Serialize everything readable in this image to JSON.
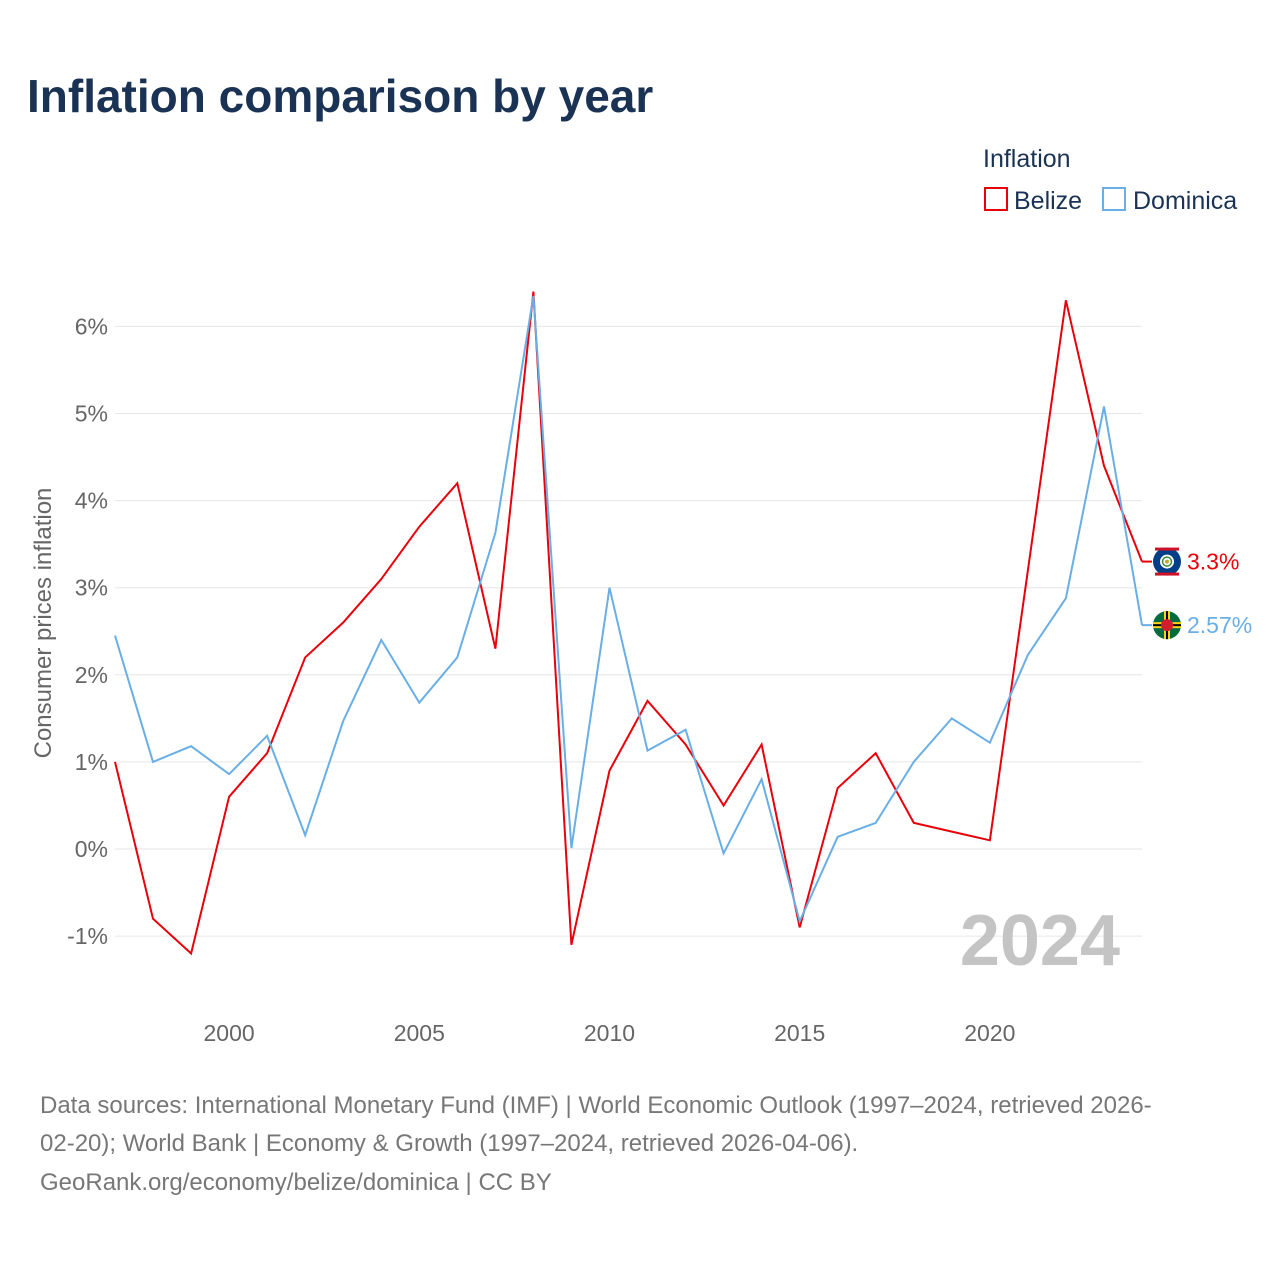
{
  "chart_data": {
    "type": "line",
    "title": "Inflation comparison by year",
    "ylabel": "Consumer prices inflation",
    "xlabel": "",
    "ylim": [
      -1.6,
      6.5
    ],
    "xlim": [
      1997,
      2024
    ],
    "y_ticks": [
      -1,
      0,
      1,
      2,
      3,
      4,
      5,
      6
    ],
    "y_tick_labels": [
      "-1%",
      "0%",
      "1%",
      "2%",
      "3%",
      "4%",
      "5%",
      "6%"
    ],
    "x_ticks": [
      2000,
      2005,
      2010,
      2015,
      2020
    ],
    "x_tick_labels": [
      "2000",
      "2005",
      "2010",
      "2015",
      "2020"
    ],
    "legend_title": "Inflation",
    "legend_position": "top-right",
    "current_year": "2024",
    "x": [
      1997,
      1998,
      1999,
      2000,
      2001,
      2002,
      2003,
      2004,
      2005,
      2006,
      2007,
      2008,
      2009,
      2010,
      2011,
      2012,
      2013,
      2014,
      2015,
      2016,
      2017,
      2018,
      2019,
      2020,
      2021,
      2022,
      2023,
      2024
    ],
    "series": [
      {
        "name": "Belize",
        "color": "#e8000b",
        "end_label": "3.3%",
        "flag_icon": "belize-flag-icon",
        "values": [
          1.0,
          -0.8,
          -1.2,
          0.6,
          1.1,
          2.2,
          2.6,
          3.1,
          3.7,
          4.2,
          2.3,
          6.4,
          -1.1,
          0.9,
          1.7,
          1.2,
          0.5,
          1.2,
          -0.9,
          0.7,
          1.1,
          0.3,
          0.2,
          0.1,
          3.2,
          6.3,
          4.4,
          3.3
        ]
      },
      {
        "name": "Dominica",
        "color": "#6aaee6",
        "end_label": "2.57%",
        "flag_icon": "dominica-flag-icon",
        "values": [
          2.45,
          1.0,
          1.18,
          0.86,
          1.3,
          0.16,
          1.47,
          2.4,
          1.68,
          2.2,
          3.63,
          6.35,
          0.01,
          3.0,
          1.13,
          1.37,
          -0.05,
          0.8,
          -0.83,
          0.14,
          0.3,
          1.0,
          1.5,
          1.22,
          2.23,
          2.88,
          5.08,
          2.57
        ]
      }
    ]
  },
  "footer": {
    "source_line1": "Data sources: International Monetary Fund (IMF) | World Economic Outlook (1997–2024, retrieved 2026-",
    "source_line2": "02-20); World Bank | Economy & Growth (1997–2024, retrieved 2026-04-06).",
    "source_line3": "GeoRank.org/economy/belize/dominica | CC BY"
  }
}
